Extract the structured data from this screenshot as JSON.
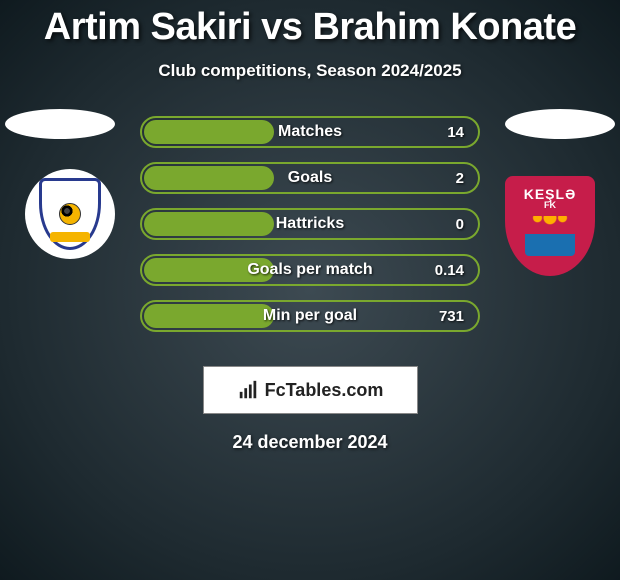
{
  "title": "Artim Sakiri vs Brahim Konate",
  "subtitle": "Club competitions, Season 2024/2025",
  "accent_color": "#7aa82e",
  "stat_bars": [
    {
      "label": "Matches",
      "right_value": "14",
      "fill_pct": 40
    },
    {
      "label": "Goals",
      "right_value": "2",
      "fill_pct": 40
    },
    {
      "label": "Hattricks",
      "right_value": "0",
      "fill_pct": 40
    },
    {
      "label": "Goals per match",
      "right_value": "0.14",
      "fill_pct": 40
    },
    {
      "label": "Min per goal",
      "right_value": "731",
      "fill_pct": 40
    }
  ],
  "left_badge": {
    "kind": "shield-crest"
  },
  "right_badge": {
    "kind": "kesla-crest",
    "name": "KEŞLƏ",
    "sub": "FK"
  },
  "footer_brand": "FcTables.com",
  "date": "24 december 2024"
}
